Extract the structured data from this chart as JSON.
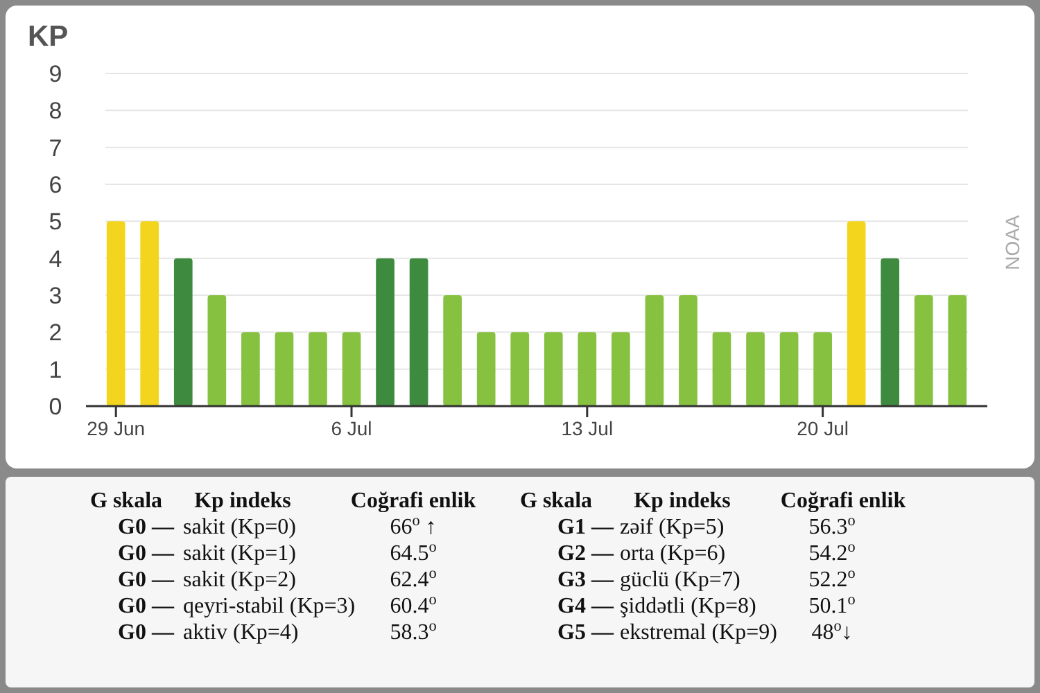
{
  "chart_data": [
    {
      "type": "bar",
      "ylabel": "KP",
      "categories": [
        "29 Jun",
        null,
        null,
        null,
        null,
        null,
        null,
        "6 Jul",
        null,
        null,
        null,
        null,
        null,
        null,
        "13 Jul",
        null,
        null,
        null,
        null,
        null,
        null,
        "20 Jul",
        null,
        null,
        null,
        null
      ],
      "values": [
        5,
        5,
        4,
        3,
        2,
        2,
        2,
        2,
        4,
        4,
        3,
        2,
        2,
        2,
        2,
        2,
        3,
        3,
        2,
        2,
        2,
        2,
        5,
        4,
        3,
        3
      ],
      "colors": [
        "#f2d51c",
        "#f2d51c",
        "#3e8a3e",
        "#86c140",
        "#86c140",
        "#86c140",
        "#86c140",
        "#86c140",
        "#3e8a3e",
        "#3e8a3e",
        "#86c140",
        "#86c140",
        "#86c140",
        "#86c140",
        "#86c140",
        "#86c140",
        "#86c140",
        "#86c140",
        "#86c140",
        "#86c140",
        "#86c140",
        "#86c140",
        "#f2d51c",
        "#3e8a3e",
        "#86c140",
        "#86c140"
      ],
      "ylim": [
        0,
        9
      ],
      "yticks": [
        0,
        1,
        2,
        3,
        4,
        5,
        6,
        7,
        8,
        9
      ],
      "grid": "y",
      "annotations": [
        "NOAA"
      ]
    },
    {
      "type": "other",
      "annotations": [
        "G skala",
        "Kp indeks",
        "Coğrafi enlik",
        "G skala",
        "Kp indeks",
        "Coğrafi enlik",
        "G0 —",
        "sakit (Kp=0)",
        "66$^{o}$ ↑",
        "G1 —",
        "zəif (Kp=5)",
        "56.3$^{o}$",
        "G0 —",
        "sakit (Kp=1)",
        "64.5$^{o}$",
        "G2 —",
        "orta (Kp=6)",
        "54.2$^{o}$",
        "G0 —",
        "sakit (Kp=2)",
        "62.4$^{o}$",
        "G3 —",
        "güclü (Kp=7)",
        "52.2$^{o}$",
        "G0 —",
        "qeyri-stabil (Kp=3)",
        "60.4$^{o}$",
        "G4 —",
        "şiddətli (Kp=8)",
        "50.1$^{o}$",
        "G0 —",
        "aktiv (Kp=4)",
        "58.3$^{o}$",
        "G5 —",
        "ekstremal (Kp=9)",
        "48$^{o}$↓"
      ]
    }
  ]
}
